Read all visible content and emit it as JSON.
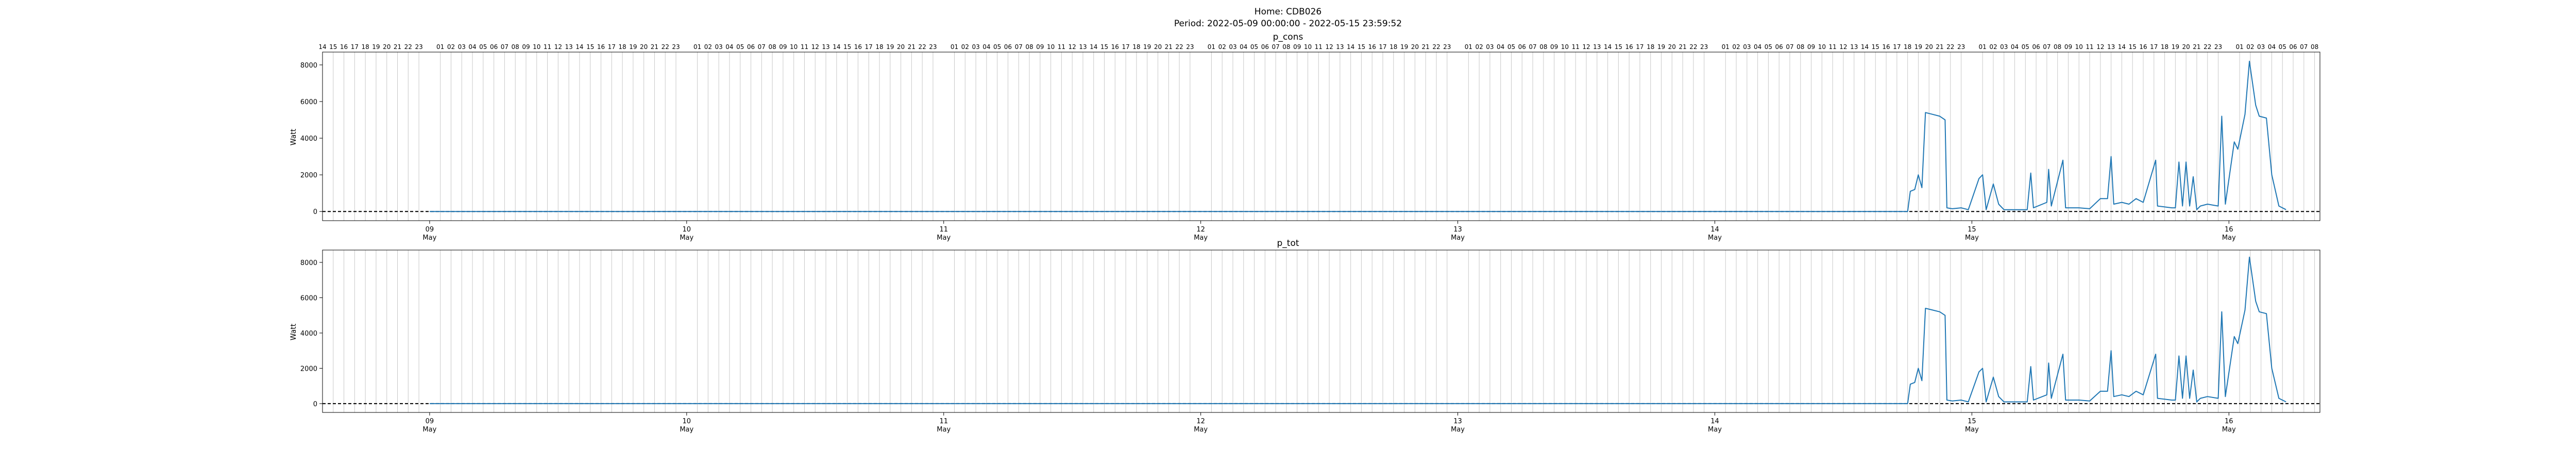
{
  "figure": {
    "title_home": "Home: CDB026",
    "title_period": "Period: 2022-05-09 00:00:00 - 2022-05-15 23:59:52"
  },
  "chart_data": [
    {
      "type": "line",
      "title": "p_cons",
      "ylabel": "Watt",
      "ylim": [
        -500,
        8700
      ],
      "yticks": [
        "0",
        "2000",
        "4000",
        "6000",
        "8000"
      ],
      "xlim": [
        "2022-05-08 14:00",
        "2022-05-16 08:30"
      ],
      "date_ticks": [
        "09 May",
        "10 May",
        "11 May",
        "12 May",
        "13 May",
        "14 May",
        "15 May",
        "16 May"
      ],
      "hour_gridlines": true,
      "reference_line": {
        "y": 0,
        "style": "dashed",
        "color": "#000000"
      },
      "series": [
        {
          "color": "#1f77b4",
          "points": [
            [
              "2022-05-09 00:00",
              0
            ],
            [
              "2022-05-14 18:00",
              0
            ],
            [
              "2022-05-14 18:15",
              1100
            ],
            [
              "2022-05-14 18:40",
              1200
            ],
            [
              "2022-05-14 19:00",
              2000
            ],
            [
              "2022-05-14 19:20",
              1300
            ],
            [
              "2022-05-14 19:40",
              5400
            ],
            [
              "2022-05-14 20:20",
              5300
            ],
            [
              "2022-05-14 21:00",
              5200
            ],
            [
              "2022-05-14 21:30",
              5000
            ],
            [
              "2022-05-14 21:40",
              200
            ],
            [
              "2022-05-14 22:10",
              150
            ],
            [
              "2022-05-14 23:00",
              200
            ],
            [
              "2022-05-14 23:40",
              100
            ],
            [
              "2022-05-15 00:40",
              1800
            ],
            [
              "2022-05-15 01:00",
              2000
            ],
            [
              "2022-05-15 01:20",
              100
            ],
            [
              "2022-05-15 02:00",
              1500
            ],
            [
              "2022-05-15 02:30",
              400
            ],
            [
              "2022-05-15 03:00",
              100
            ],
            [
              "2022-05-15 05:10",
              100
            ],
            [
              "2022-05-15 05:30",
              2100
            ],
            [
              "2022-05-15 05:45",
              200
            ],
            [
              "2022-05-15 07:00",
              500
            ],
            [
              "2022-05-15 07:10",
              2300
            ],
            [
              "2022-05-15 07:25",
              300
            ],
            [
              "2022-05-15 08:30",
              2800
            ],
            [
              "2022-05-15 08:45",
              200
            ],
            [
              "2022-05-15 10:00",
              200
            ],
            [
              "2022-05-15 11:00",
              150
            ],
            [
              "2022-05-15 12:00",
              700
            ],
            [
              "2022-05-15 12:40",
              700
            ],
            [
              "2022-05-15 13:00",
              3000
            ],
            [
              "2022-05-15 13:15",
              400
            ],
            [
              "2022-05-15 14:00",
              500
            ],
            [
              "2022-05-15 14:40",
              400
            ],
            [
              "2022-05-15 15:20",
              700
            ],
            [
              "2022-05-15 16:00",
              500
            ],
            [
              "2022-05-15 17:10",
              2800
            ],
            [
              "2022-05-15 17:20",
              300
            ],
            [
              "2022-05-15 18:40",
              200
            ],
            [
              "2022-05-15 19:00",
              200
            ],
            [
              "2022-05-15 19:20",
              2700
            ],
            [
              "2022-05-15 19:40",
              300
            ],
            [
              "2022-05-15 20:00",
              2700
            ],
            [
              "2022-05-15 20:20",
              300
            ],
            [
              "2022-05-15 20:40",
              1900
            ],
            [
              "2022-05-15 21:00",
              100
            ],
            [
              "2022-05-15 21:20",
              300
            ],
            [
              "2022-05-15 22:00",
              400
            ],
            [
              "2022-05-15 23:00",
              300
            ],
            [
              "2022-05-15 23:20",
              5200
            ],
            [
              "2022-05-15 23:40",
              400
            ],
            [
              "2022-05-16 00:30",
              3800
            ],
            [
              "2022-05-16 00:50",
              3400
            ],
            [
              "2022-05-16 01:30",
              5300
            ],
            [
              "2022-05-16 01:55",
              8200
            ],
            [
              "2022-05-16 02:30",
              5800
            ],
            [
              "2022-05-16 02:50",
              5200
            ],
            [
              "2022-05-16 03:30",
              5100
            ],
            [
              "2022-05-16 04:00",
              2000
            ],
            [
              "2022-05-16 04:40",
              300
            ],
            [
              "2022-05-16 05:20",
              100
            ]
          ]
        }
      ]
    },
    {
      "type": "line",
      "title": "p_tot",
      "ylabel": "Watt",
      "ylim": [
        -500,
        8700
      ],
      "yticks": [
        "0",
        "2000",
        "4000",
        "6000",
        "8000"
      ],
      "xlim": [
        "2022-05-08 14:00",
        "2022-05-16 08:30"
      ],
      "date_ticks": [
        "09 May",
        "10 May",
        "11 May",
        "12 May",
        "13 May",
        "14 May",
        "15 May",
        "16 May"
      ],
      "hour_gridlines": true,
      "reference_line": {
        "y": 0,
        "style": "dashed",
        "color": "#000000"
      },
      "series": [
        {
          "color": "#1f77b4",
          "points": [
            [
              "2022-05-09 00:00",
              0
            ],
            [
              "2022-05-14 18:00",
              0
            ],
            [
              "2022-05-14 18:15",
              1100
            ],
            [
              "2022-05-14 18:40",
              1200
            ],
            [
              "2022-05-14 19:00",
              2000
            ],
            [
              "2022-05-14 19:20",
              1300
            ],
            [
              "2022-05-14 19:40",
              5400
            ],
            [
              "2022-05-14 20:20",
              5300
            ],
            [
              "2022-05-14 21:00",
              5200
            ],
            [
              "2022-05-14 21:30",
              5000
            ],
            [
              "2022-05-14 21:40",
              200
            ],
            [
              "2022-05-14 22:10",
              150
            ],
            [
              "2022-05-14 23:00",
              200
            ],
            [
              "2022-05-14 23:40",
              100
            ],
            [
              "2022-05-15 00:40",
              1800
            ],
            [
              "2022-05-15 01:00",
              2000
            ],
            [
              "2022-05-15 01:20",
              100
            ],
            [
              "2022-05-15 02:00",
              1500
            ],
            [
              "2022-05-15 02:30",
              400
            ],
            [
              "2022-05-15 03:00",
              100
            ],
            [
              "2022-05-15 05:10",
              100
            ],
            [
              "2022-05-15 05:30",
              2100
            ],
            [
              "2022-05-15 05:45",
              200
            ],
            [
              "2022-05-15 07:00",
              500
            ],
            [
              "2022-05-15 07:10",
              2300
            ],
            [
              "2022-05-15 07:25",
              300
            ],
            [
              "2022-05-15 08:30",
              2800
            ],
            [
              "2022-05-15 08:45",
              200
            ],
            [
              "2022-05-15 10:00",
              200
            ],
            [
              "2022-05-15 11:00",
              150
            ],
            [
              "2022-05-15 12:00",
              700
            ],
            [
              "2022-05-15 12:40",
              700
            ],
            [
              "2022-05-15 13:00",
              3000
            ],
            [
              "2022-05-15 13:15",
              400
            ],
            [
              "2022-05-15 14:00",
              500
            ],
            [
              "2022-05-15 14:40",
              400
            ],
            [
              "2022-05-15 15:20",
              700
            ],
            [
              "2022-05-15 16:00",
              500
            ],
            [
              "2022-05-15 17:10",
              2800
            ],
            [
              "2022-05-15 17:20",
              300
            ],
            [
              "2022-05-15 18:40",
              200
            ],
            [
              "2022-05-15 19:00",
              200
            ],
            [
              "2022-05-15 19:20",
              2700
            ],
            [
              "2022-05-15 19:40",
              300
            ],
            [
              "2022-05-15 20:00",
              2700
            ],
            [
              "2022-05-15 20:20",
              300
            ],
            [
              "2022-05-15 20:40",
              1900
            ],
            [
              "2022-05-15 21:00",
              100
            ],
            [
              "2022-05-15 21:20",
              300
            ],
            [
              "2022-05-15 22:00",
              400
            ],
            [
              "2022-05-15 23:00",
              300
            ],
            [
              "2022-05-15 23:20",
              5200
            ],
            [
              "2022-05-15 23:40",
              400
            ],
            [
              "2022-05-16 00:30",
              3800
            ],
            [
              "2022-05-16 00:50",
              3400
            ],
            [
              "2022-05-16 01:30",
              5300
            ],
            [
              "2022-05-16 01:55",
              8300
            ],
            [
              "2022-05-16 02:30",
              5800
            ],
            [
              "2022-05-16 02:50",
              5200
            ],
            [
              "2022-05-16 03:30",
              5100
            ],
            [
              "2022-05-16 04:00",
              2000
            ],
            [
              "2022-05-16 04:40",
              300
            ],
            [
              "2022-05-16 05:20",
              100
            ]
          ]
        }
      ]
    }
  ]
}
